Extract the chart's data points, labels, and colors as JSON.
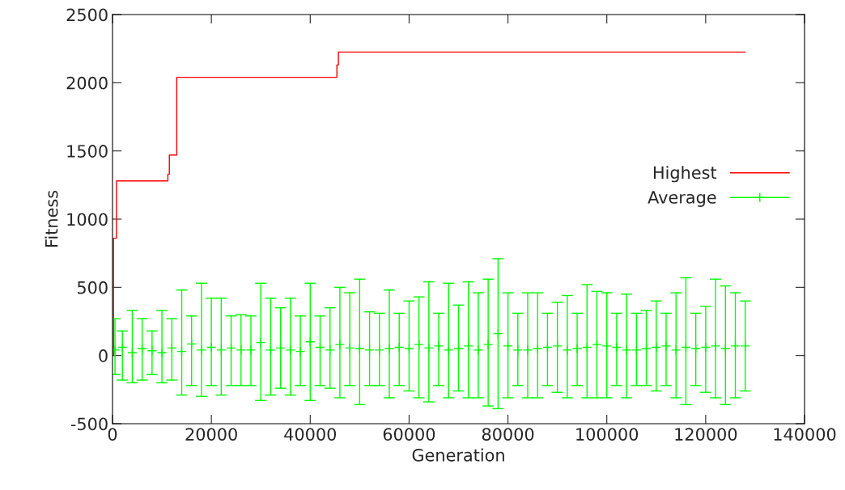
{
  "chart_data": {
    "type": "scatter",
    "xlabel": "Generation",
    "ylabel": "Fitness",
    "xlim": [
      0,
      140000
    ],
    "ylim": [
      -500,
      2500
    ],
    "xticks": [
      0,
      20000,
      40000,
      60000,
      80000,
      100000,
      120000,
      140000
    ],
    "yticks": [
      -500,
      0,
      500,
      1000,
      1500,
      2000,
      2500
    ],
    "grid": false,
    "legend": "right",
    "series": [
      {
        "name": "Highest",
        "type": "step",
        "color": "#ff0000",
        "x": [
          0,
          200,
          800,
          11000,
          11200,
          11500,
          12800,
          13000,
          45200,
          45400,
          45700,
          128000
        ],
        "values": [
          0,
          860,
          1280,
          1280,
          1330,
          1470,
          1470,
          2040,
          2040,
          2130,
          2225,
          2225
        ]
      },
      {
        "name": "Average",
        "marker": "cross",
        "color": "#00ff00",
        "x": [
          500,
          2000,
          4000,
          6000,
          8000,
          10000,
          12000,
          14000,
          16000,
          18000,
          20000,
          22000,
          24000,
          26000,
          28000,
          30000,
          32000,
          34000,
          36000,
          38000,
          40000,
          42000,
          44000,
          46000,
          48000,
          50000,
          52000,
          54000,
          56000,
          58000,
          60000,
          62000,
          64000,
          66000,
          68000,
          70000,
          72000,
          74000,
          76000,
          78000,
          80000,
          82000,
          84000,
          86000,
          88000,
          90000,
          92000,
          94000,
          96000,
          98000,
          100000,
          102000,
          104000,
          106000,
          108000,
          110000,
          112000,
          114000,
          116000,
          118000,
          120000,
          122000,
          124000,
          126000,
          128000
        ],
        "values": [
          40,
          60,
          20,
          50,
          35,
          20,
          55,
          30,
          85,
          40,
          60,
          40,
          55,
          40,
          40,
          95,
          40,
          55,
          40,
          30,
          100,
          60,
          40,
          80,
          55,
          50,
          40,
          40,
          50,
          60,
          50,
          80,
          55,
          70,
          40,
          50,
          70,
          40,
          80,
          160,
          70,
          40,
          40,
          50,
          60,
          70,
          40,
          50,
          60,
          80,
          70,
          60,
          40,
          40,
          50,
          60,
          70,
          40,
          60,
          50,
          60,
          70,
          50,
          70,
          70
        ],
        "errors": [
          [
            -140,
            270
          ],
          [
            -180,
            180
          ],
          [
            -200,
            330
          ],
          [
            -180,
            270
          ],
          [
            -140,
            180
          ],
          [
            -200,
            330
          ],
          [
            -180,
            270
          ],
          [
            -290,
            480
          ],
          [
            -220,
            290
          ],
          [
            -300,
            530
          ],
          [
            -220,
            420
          ],
          [
            -290,
            420
          ],
          [
            -220,
            290
          ],
          [
            -220,
            300
          ],
          [
            -220,
            290
          ],
          [
            -330,
            530
          ],
          [
            -290,
            420
          ],
          [
            -240,
            350
          ],
          [
            -290,
            420
          ],
          [
            -220,
            290
          ],
          [
            -330,
            530
          ],
          [
            -220,
            290
          ],
          [
            -240,
            350
          ],
          [
            -310,
            500
          ],
          [
            -220,
            460
          ],
          [
            -360,
            560
          ],
          [
            -220,
            320
          ],
          [
            -220,
            310
          ],
          [
            -310,
            480
          ],
          [
            -220,
            310
          ],
          [
            -260,
            400
          ],
          [
            -310,
            430
          ],
          [
            -340,
            540
          ],
          [
            -220,
            310
          ],
          [
            -310,
            530
          ],
          [
            -260,
            370
          ],
          [
            -310,
            540
          ],
          [
            -310,
            460
          ],
          [
            -370,
            560
          ],
          [
            -390,
            710
          ],
          [
            -310,
            460
          ],
          [
            -220,
            310
          ],
          [
            -310,
            460
          ],
          [
            -310,
            460
          ],
          [
            -220,
            310
          ],
          [
            -270,
            390
          ],
          [
            -310,
            440
          ],
          [
            -220,
            310
          ],
          [
            -310,
            520
          ],
          [
            -310,
            470
          ],
          [
            -310,
            460
          ],
          [
            -220,
            310
          ],
          [
            -310,
            450
          ],
          [
            -220,
            310
          ],
          [
            -220,
            330
          ],
          [
            -260,
            400
          ],
          [
            -220,
            310
          ],
          [
            -310,
            460
          ],
          [
            -360,
            570
          ],
          [
            -220,
            310
          ],
          [
            -270,
            360
          ],
          [
            -310,
            560
          ],
          [
            -360,
            510
          ],
          [
            -310,
            460
          ],
          [
            -260,
            400
          ]
        ]
      }
    ]
  }
}
